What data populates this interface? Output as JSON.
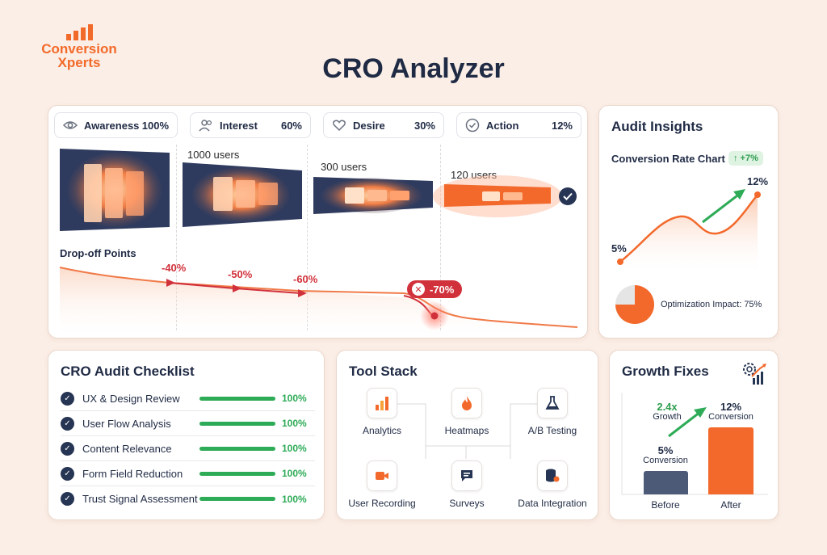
{
  "brand": {
    "name_line1": "Conversion",
    "name_line2": "Xperts",
    "color": "#f26a2a",
    "icon": "bar-chart-logo-icon"
  },
  "page": {
    "title": "CRO Analyzer"
  },
  "funnel": {
    "stages": [
      {
        "label": "Awareness",
        "pct": "100%",
        "icon": "eye-icon"
      },
      {
        "label": "Interest",
        "pct": "60%",
        "icon": "users-icon"
      },
      {
        "label": "Desire",
        "pct": "30%",
        "icon": "heart-icon"
      },
      {
        "label": "Action",
        "pct": "12%",
        "icon": "check-circle-icon"
      }
    ],
    "user_counts": [
      "1000 users",
      "300 users",
      "120 users"
    ],
    "dropoff_title": "Drop-off Points",
    "dropoffs": [
      "-40%",
      "-50%",
      "-60%",
      "-70%"
    ]
  },
  "insights": {
    "title": "Audit Insights",
    "chart_title": "Conversion Rate Chart",
    "badge": "↑ +7%",
    "start_label": "5%",
    "end_label": "12%",
    "impact_label": "Optimization Impact: 75%"
  },
  "checklist": {
    "title": "CRO Audit Checklist",
    "items": [
      {
        "label": "UX & Design Review",
        "pct": "100%",
        "progress": 1.0
      },
      {
        "label": "User Flow Analysis",
        "pct": "100%",
        "progress": 1.0
      },
      {
        "label": "Content Relevance",
        "pct": "100%",
        "progress": 1.0
      },
      {
        "label": "Form Field Reduction",
        "pct": "100%",
        "progress": 1.0
      },
      {
        "label": "Trust Signal Assessment",
        "pct": "100%",
        "progress": 1.0
      }
    ]
  },
  "tools": {
    "title": "Tool Stack",
    "items": [
      {
        "label": "Analytics",
        "icon": "bar-chart-icon"
      },
      {
        "label": "Heatmaps",
        "icon": "flame-icon"
      },
      {
        "label": "A/B Testing",
        "icon": "flask-icon"
      },
      {
        "label": "User Recording",
        "icon": "video-camera-icon"
      },
      {
        "label": "Surveys",
        "icon": "chat-bubble-icon"
      },
      {
        "label": "Data Integration",
        "icon": "database-icon"
      }
    ]
  },
  "growth": {
    "title": "Growth Fixes",
    "growth_value": "2.4x",
    "growth_label": "Growth",
    "before_value": "5%",
    "before_caption": "Conversion",
    "after_value": "12%",
    "after_caption": "Conversion",
    "before_label": "Before",
    "after_label": "After"
  },
  "colors": {
    "accent": "#f2692b",
    "navy": "#263553",
    "green": "#2eab57",
    "red": "#d1313b"
  }
}
